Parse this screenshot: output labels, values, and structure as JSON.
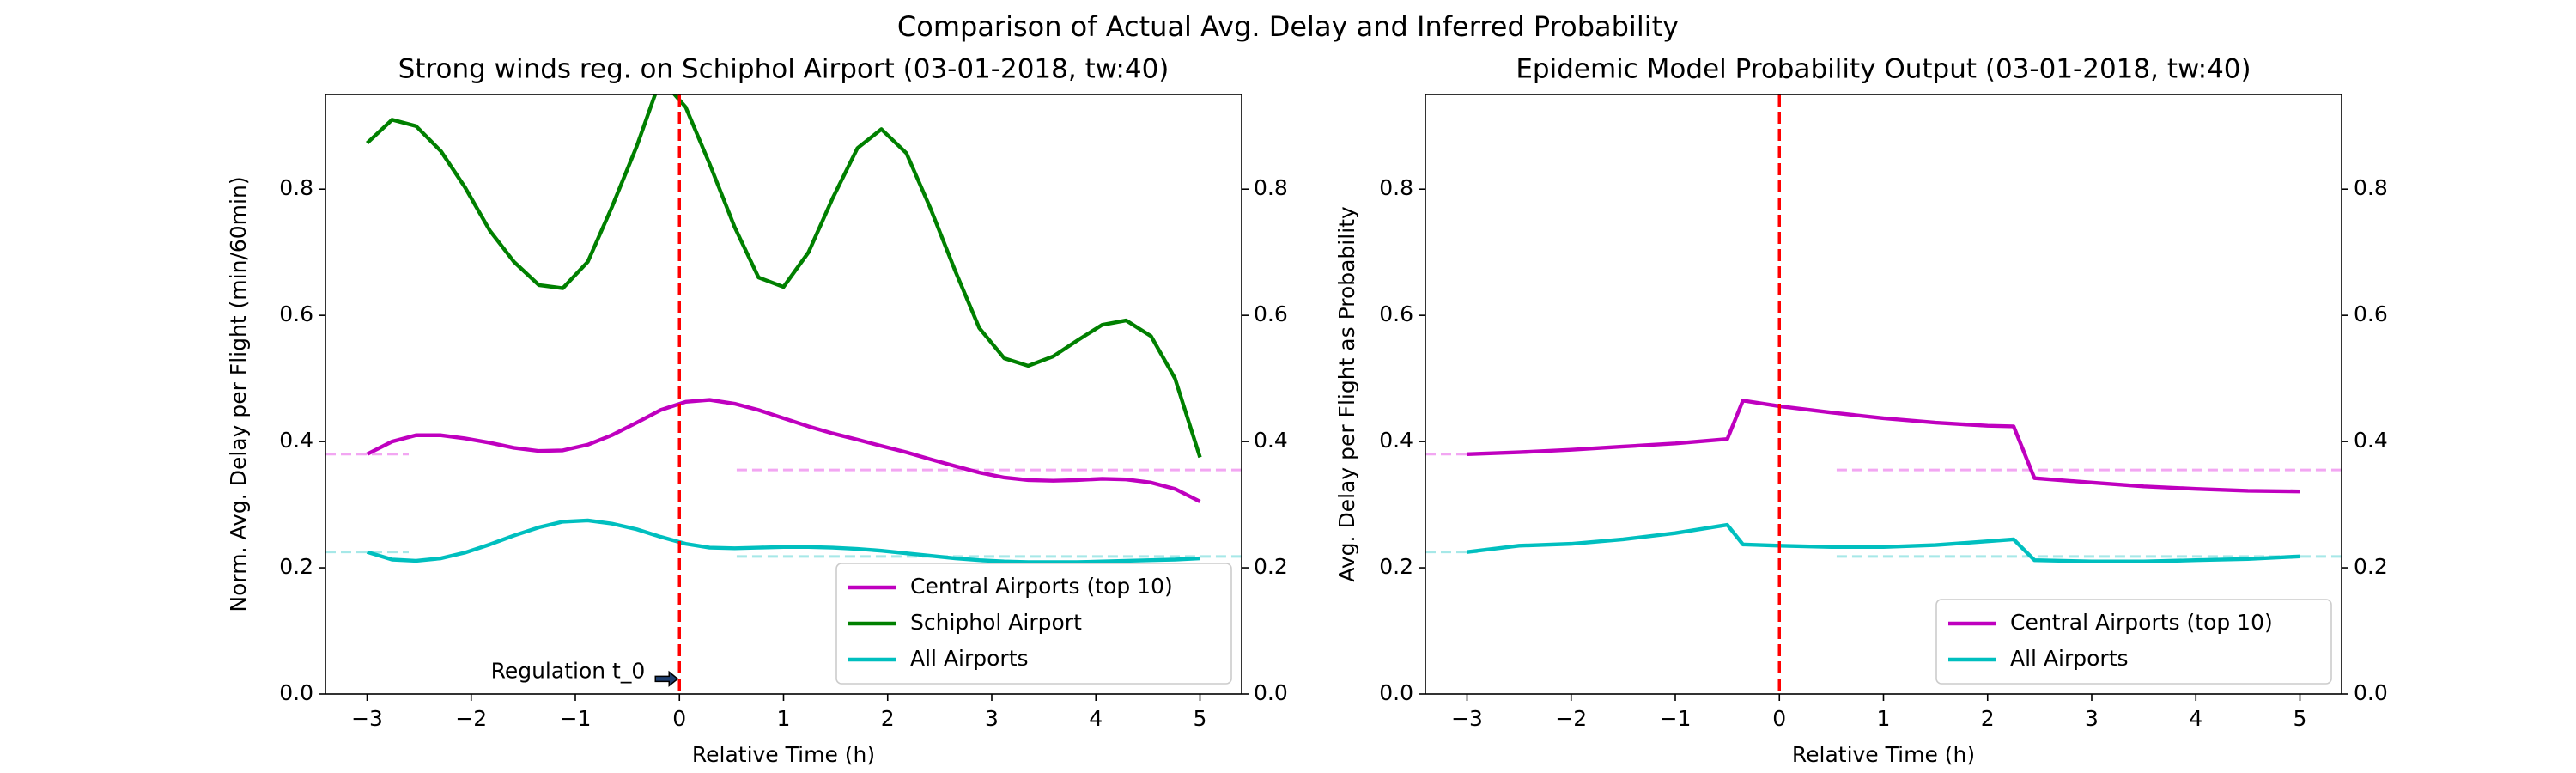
{
  "title": "Comparison of Actual Avg. Delay and Inferred Probability",
  "chart_data": [
    {
      "type": "line",
      "title": "Strong winds reg. on Schiphol Airport (03-01-2018, tw:40)",
      "xlabel": "Relative Time (h)",
      "ylabel": "Norm. Avg. Delay per Flight (min/60min)",
      "x": [
        -3,
        -2.76,
        -2.53,
        -2.29,
        -2.06,
        -1.82,
        -1.59,
        -1.35,
        -1.12,
        -0.88,
        -0.65,
        -0.41,
        -0.18,
        0.06,
        0.29,
        0.53,
        0.76,
        1.0,
        1.24,
        1.47,
        1.71,
        1.94,
        2.18,
        2.41,
        2.65,
        2.88,
        3.12,
        3.35,
        3.59,
        3.82,
        4.06,
        4.29,
        4.53,
        4.76,
        5.0
      ],
      "series": [
        {
          "name": "Central Airports (top 10)",
          "color": "#bf00bf",
          "values": [
            0.38,
            0.4,
            0.41,
            0.41,
            0.405,
            0.398,
            0.39,
            0.385,
            0.386,
            0.395,
            0.41,
            0.43,
            0.45,
            0.463,
            0.466,
            0.46,
            0.45,
            0.437,
            0.424,
            0.413,
            0.403,
            0.393,
            0.383,
            0.372,
            0.361,
            0.351,
            0.343,
            0.339,
            0.338,
            0.339,
            0.341,
            0.34,
            0.335,
            0.325,
            0.305
          ]
        },
        {
          "name": "Schiphol Airport",
          "color": "#008000",
          "values": [
            0.873,
            0.91,
            0.9,
            0.86,
            0.803,
            0.734,
            0.685,
            0.648,
            0.643,
            0.685,
            0.771,
            0.868,
            0.975,
            0.93,
            0.84,
            0.74,
            0.66,
            0.645,
            0.7,
            0.785,
            0.865,
            0.895,
            0.857,
            0.77,
            0.67,
            0.58,
            0.532,
            0.52,
            0.535,
            0.56,
            0.585,
            0.592,
            0.567,
            0.5,
            0.375
          ]
        },
        {
          "name": "All Airports",
          "color": "#00bfbf",
          "values": [
            0.225,
            0.213,
            0.211,
            0.215,
            0.224,
            0.237,
            0.251,
            0.264,
            0.273,
            0.275,
            0.27,
            0.261,
            0.249,
            0.238,
            0.232,
            0.231,
            0.232,
            0.233,
            0.233,
            0.232,
            0.23,
            0.227,
            0.223,
            0.219,
            0.215,
            0.212,
            0.21,
            0.209,
            0.209,
            0.209,
            0.21,
            0.211,
            0.212,
            0.213,
            0.215
          ]
        }
      ],
      "hlines": [
        {
          "y": 0.38,
          "xmin": -3.4,
          "xmax": -2.6,
          "color": "#f2a6f2"
        },
        {
          "y": 0.355,
          "xmin": 0.55,
          "xmax": 5.4,
          "color": "#f2a6f2"
        },
        {
          "y": 0.225,
          "xmin": -3.4,
          "xmax": -2.6,
          "color": "#a6e8e8"
        },
        {
          "y": 0.218,
          "xmin": 0.55,
          "xmax": 5.4,
          "color": "#a6e8e8"
        }
      ],
      "vlines": [
        {
          "x": 0,
          "color": "#ff0000"
        }
      ],
      "annotation": {
        "text": "Regulation t_0",
        "x": 0,
        "y": 0.024
      },
      "xlim": [
        -3.4,
        5.4
      ],
      "ylim": [
        0,
        0.95
      ],
      "y2lim": [
        0,
        0.95
      ],
      "xticks": [
        {
          "value": -3,
          "label": "−3"
        },
        {
          "value": -2,
          "label": "−2"
        },
        {
          "value": -1,
          "label": "−1"
        },
        0,
        1,
        2,
        3,
        4,
        5
      ],
      "yticks": [
        {
          "value": 0,
          "label": "0.0"
        },
        0.2,
        0.4,
        0.6,
        0.8
      ],
      "y2ticks": [
        {
          "value": 0,
          "label": "0.0"
        },
        0.2,
        0.4,
        0.6,
        0.8
      ],
      "legend": "lower right"
    },
    {
      "type": "line",
      "title": "Epidemic Model Probability Output (03-01-2018, tw:40)",
      "xlabel": "Relative Time (h)",
      "ylabel": "Avg. Delay per Flight as Probability",
      "x": [
        -3,
        -2.5,
        -2,
        -1.5,
        -1,
        -0.5,
        -0.35,
        0,
        0.5,
        1,
        1.5,
        2,
        2.25,
        2.45,
        3,
        3.5,
        4,
        4.5,
        5
      ],
      "series": [
        {
          "name": "Central Airports (top 10)",
          "color": "#bf00bf",
          "values": [
            0.38,
            0.383,
            0.387,
            0.392,
            0.397,
            0.404,
            0.465,
            0.456,
            0.446,
            0.437,
            0.43,
            0.425,
            0.424,
            0.342,
            0.335,
            0.329,
            0.325,
            0.322,
            0.321
          ]
        },
        {
          "name": "All Airports",
          "color": "#00bfbf",
          "values": [
            0.225,
            0.235,
            0.238,
            0.245,
            0.255,
            0.268,
            0.237,
            0.235,
            0.233,
            0.233,
            0.236,
            0.242,
            0.245,
            0.212,
            0.21,
            0.21,
            0.212,
            0.214,
            0.218
          ]
        }
      ],
      "hlines": [
        {
          "y": 0.38,
          "xmin": -3.4,
          "xmax": -2.9,
          "color": "#f2a6f2"
        },
        {
          "y": 0.355,
          "xmin": 0.55,
          "xmax": 5.4,
          "color": "#f2a6f2"
        },
        {
          "y": 0.225,
          "xmin": -3.4,
          "xmax": -2.9,
          "color": "#a6e8e8"
        },
        {
          "y": 0.218,
          "xmin": 0.55,
          "xmax": 5.4,
          "color": "#a6e8e8"
        }
      ],
      "vlines": [
        {
          "x": 0,
          "color": "#ff0000"
        }
      ],
      "xlim": [
        -3.4,
        5.4
      ],
      "ylim": [
        0,
        0.95
      ],
      "y2lim": [
        0,
        0.95
      ],
      "xticks": [
        {
          "value": -3,
          "label": "−3"
        },
        {
          "value": -2,
          "label": "−2"
        },
        {
          "value": -1,
          "label": "−1"
        },
        0,
        1,
        2,
        3,
        4,
        5
      ],
      "yticks": [
        {
          "value": 0,
          "label": "0.0"
        },
        0.2,
        0.4,
        0.6,
        0.8
      ],
      "y2ticks": [
        {
          "value": 0,
          "label": "0.0"
        },
        0.2,
        0.4,
        0.6,
        0.8
      ],
      "legend": "lower right"
    }
  ]
}
